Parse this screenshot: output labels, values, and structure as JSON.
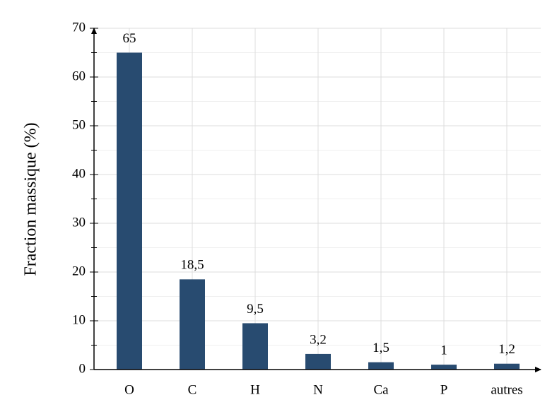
{
  "chart_data": {
    "type": "bar",
    "y_label": "Fraction massique (%)",
    "categories": [
      "O",
      "C",
      "H",
      "N",
      "Ca",
      "P",
      "autres"
    ],
    "values": [
      65,
      18.5,
      9.5,
      3.2,
      1.5,
      1,
      1.2
    ],
    "value_labels": [
      "65",
      "18,5",
      "9,5",
      "3,2",
      "1,5",
      "1",
      "1,2"
    ],
    "color": "#284b70",
    "ylim": [
      0,
      70
    ],
    "yticks": [
      0,
      10,
      20,
      30,
      40,
      50,
      60,
      70
    ],
    "yminorticks": [
      5,
      15,
      25,
      35,
      45,
      55,
      65
    ],
    "grid": true
  }
}
